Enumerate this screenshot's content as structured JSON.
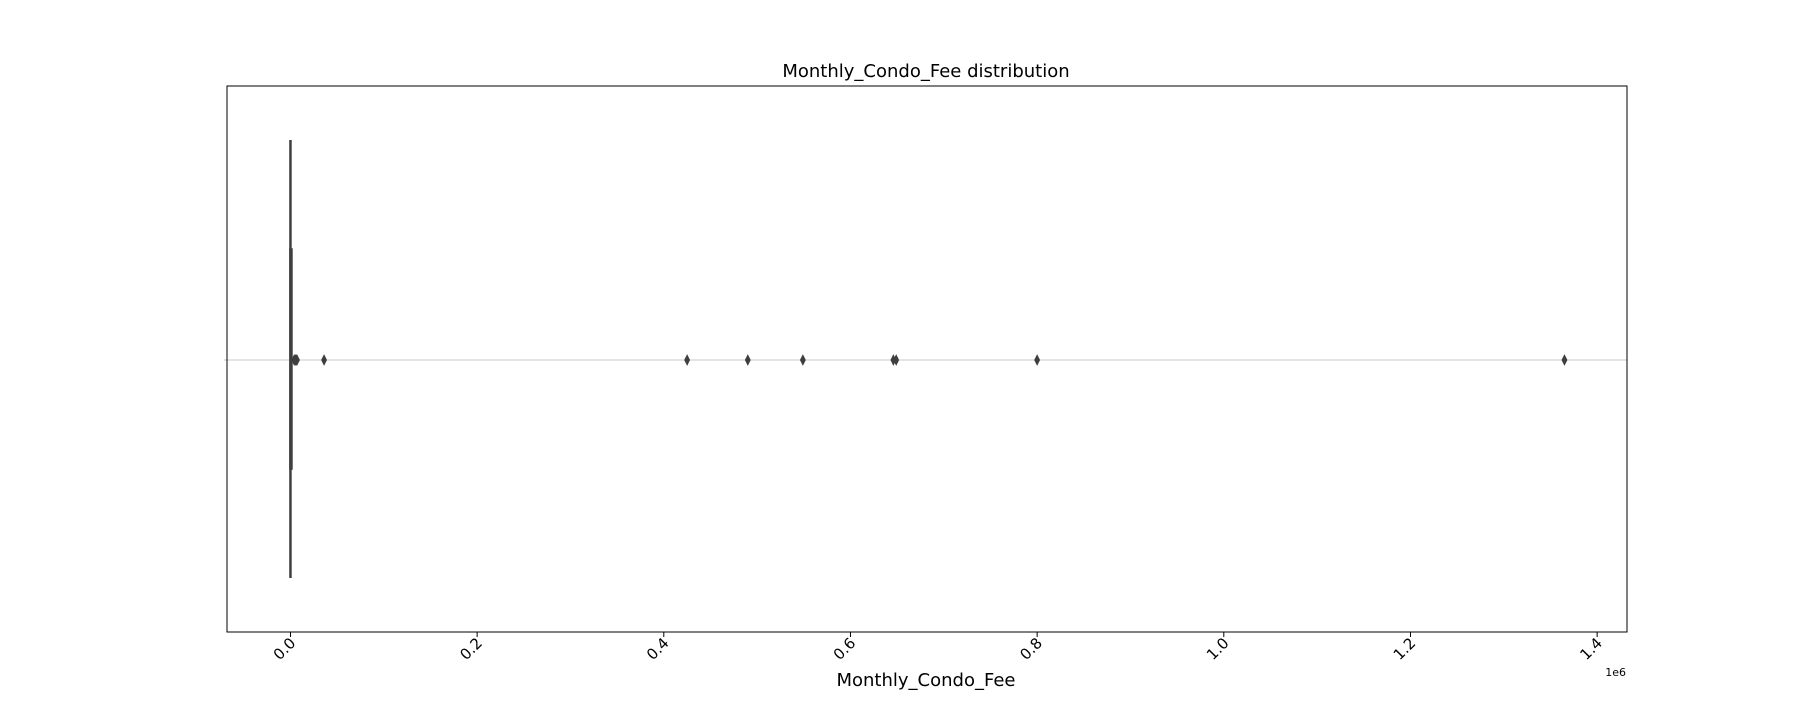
{
  "chart_data": {
    "type": "boxplot",
    "title": "Monthly_Condo_Fee distribution",
    "xlabel": "Monthly_Condo_Fee",
    "ylabel": "",
    "axis_offset_label": "1e6",
    "xlim": [
      -0.068,
      1.432
    ],
    "xticks": [
      0.0,
      0.2,
      0.4,
      0.6,
      0.8,
      1.0,
      1.2,
      1.4
    ],
    "xtick_labels": [
      "0.0",
      "0.2",
      "0.4",
      "0.6",
      "0.8",
      "1.0",
      "1.2",
      "1.4"
    ],
    "tick_label_rotation": "45 degrees",
    "grid": false,
    "box": {
      "q1": 0.0,
      "median": 0.0005,
      "q3": 0.001,
      "whisker_low": 0.0,
      "whisker_high": 0.002
    },
    "outliers": [
      0.004,
      0.005,
      0.006,
      0.007,
      0.036,
      0.425,
      0.49,
      0.549,
      0.646,
      0.649,
      0.8,
      1.365
    ],
    "colors": {
      "box_edge": "#3f3f3f",
      "outlier": "#3f3f3f",
      "axes": "#000000",
      "centerline": "#c8c8c8"
    }
  }
}
